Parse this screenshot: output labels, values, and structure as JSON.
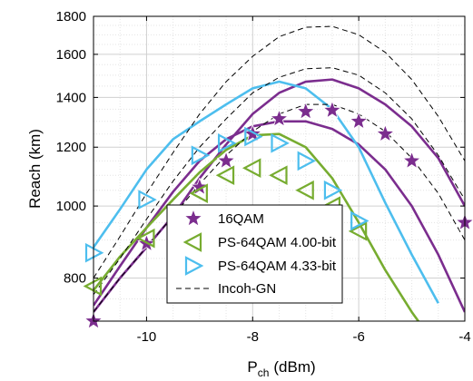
{
  "chart_data": {
    "type": "line",
    "xlabel_main": "P",
    "xlabel_sub": "ch",
    "xlabel_unit": "(dBm)",
    "ylabel": "Reach (km)",
    "xlim": [
      -11,
      -4
    ],
    "ylim": [
      700,
      1800
    ],
    "y_scale": "log",
    "grid": true,
    "legend_position": "lower-left",
    "x_ticks": [
      -10,
      -8,
      -6,
      -4
    ],
    "x_tick_labels": [
      "-10",
      "-8",
      "-6",
      "-4"
    ],
    "y_ticks": [
      800,
      1000,
      1200,
      1400,
      1600,
      1800
    ],
    "y_tick_labels": [
      "800",
      "1000",
      "1200",
      "1400",
      "1600",
      "1800"
    ],
    "colors": {
      "16QAM": "#7b2d8e",
      "PS-64QAM 4.00-bit": "#77ac30",
      "PS-64QAM 4.33-bit": "#4dbeee",
      "Incoh-GN": "#000000"
    },
    "legend": [
      {
        "label": "16QAM",
        "marker": "star",
        "color": "#7b2d8e"
      },
      {
        "label": "PS-64QAM 4.00-bit",
        "marker": "triangle-left",
        "color": "#77ac30"
      },
      {
        "label": "PS-64QAM 4.33-bit",
        "marker": "triangle-right",
        "color": "#4dbeee"
      },
      {
        "label": "Incoh-GN",
        "marker": "dashed-line",
        "color": "#000000"
      }
    ],
    "series": [
      {
        "name": "16QAM",
        "kind": "markers",
        "marker": "star",
        "color": "#7b2d8e",
        "x": [
          -11,
          -10,
          -9,
          -8.5,
          -8,
          -7.5,
          -7,
          -6.5,
          -6,
          -5.5,
          -5,
          -4
        ],
        "y": [
          700,
          890,
          1060,
          1150,
          1250,
          1310,
          1340,
          1345,
          1300,
          1250,
          1150,
          950
        ]
      },
      {
        "name": "PS-64QAM 4.00-bit",
        "kind": "markers",
        "marker": "triangle-left",
        "color": "#77ac30",
        "x": [
          -11,
          -10,
          -9,
          -8.5,
          -8,
          -7.5,
          -7,
          -6.5,
          -6
        ],
        "y": [
          780,
          905,
          1040,
          1100,
          1125,
          1100,
          1050,
          1000,
          925
        ]
      },
      {
        "name": "PS-64QAM 4.33-bit",
        "kind": "markers",
        "marker": "triangle-right",
        "color": "#4dbeee",
        "x": [
          -11,
          -10,
          -9,
          -8.5,
          -8,
          -7.5,
          -7,
          -6.5,
          -6
        ],
        "y": [
          865,
          1020,
          1170,
          1215,
          1240,
          1215,
          1150,
          1050,
          955
        ]
      },
      {
        "name": "16QAM",
        "kind": "line",
        "color": "#7b2d8e",
        "x": [
          -11,
          -10.5,
          -10,
          -9.5,
          -9,
          -8.5,
          -8,
          -7.5,
          -7,
          -6.5,
          -6,
          -5.5,
          -5,
          -4.5,
          -4
        ],
        "y": [
          720,
          800,
          880,
          970,
          1090,
          1210,
          1330,
          1420,
          1470,
          1480,
          1440,
          1370,
          1280,
          1160,
          1000
        ]
      },
      {
        "name": "16QAM",
        "kind": "line",
        "color": "#7b2d8e",
        "x": [
          -11,
          -10.5,
          -10,
          -9.5,
          -9,
          -8.5,
          -8,
          -7.5,
          -7,
          -6.5,
          -6,
          -5.5,
          -5,
          -4.5,
          -4
        ],
        "y": [
          735,
          830,
          935,
          1045,
          1150,
          1230,
          1280,
          1300,
          1300,
          1270,
          1210,
          1120,
          1000,
          860,
          720
        ]
      },
      {
        "name": "PS-64QAM 4.00-bit",
        "kind": "line",
        "color": "#77ac30",
        "x": [
          -11,
          -10.5,
          -10,
          -9.5,
          -9,
          -8.5,
          -8,
          -7.5,
          -7,
          -6.5,
          -6,
          -5.5,
          -5,
          -4.75
        ],
        "y": [
          770,
          855,
          935,
          1020,
          1110,
          1190,
          1245,
          1250,
          1200,
          1090,
          950,
          820,
          720,
          680
        ]
      },
      {
        "name": "PS-64QAM 4.33-bit",
        "kind": "line",
        "color": "#4dbeee",
        "x": [
          -11,
          -10.5,
          -10,
          -9.5,
          -9,
          -8.5,
          -8,
          -7.5,
          -7,
          -6.5,
          -6,
          -5.5,
          -5,
          -4.5
        ],
        "y": [
          880,
          990,
          1120,
          1230,
          1300,
          1370,
          1440,
          1470,
          1440,
          1350,
          1200,
          1010,
          860,
          740
        ]
      },
      {
        "name": "Incoh-GN",
        "kind": "line",
        "dash": true,
        "color": "#000000",
        "x": [
          -11,
          -10.5,
          -10,
          -9.5,
          -9,
          -8.5,
          -8,
          -7.5,
          -7,
          -6.5,
          -6,
          -5.5,
          -5,
          -4.5,
          -4
        ],
        "y": [
          800,
          910,
          1040,
          1180,
          1330,
          1470,
          1590,
          1690,
          1740,
          1745,
          1700,
          1610,
          1480,
          1320,
          1150
        ]
      },
      {
        "name": "Incoh-GN",
        "kind": "line",
        "dash": true,
        "color": "#000000",
        "x": [
          -11,
          -10.5,
          -10,
          -9.5,
          -9,
          -8.5,
          -8,
          -7.5,
          -7,
          -6.5,
          -6,
          -5.5,
          -5,
          -4.5,
          -4
        ],
        "y": [
          760,
          850,
          960,
          1080,
          1200,
          1310,
          1420,
          1490,
          1530,
          1535,
          1500,
          1420,
          1310,
          1170,
          1020
        ]
      },
      {
        "name": "Incoh-GN",
        "kind": "line",
        "dash": true,
        "color": "#000000",
        "x": [
          -11,
          -10.5,
          -10,
          -9.5,
          -9,
          -8.5,
          -8,
          -7.5,
          -7,
          -6.5,
          -6,
          -5.5,
          -5,
          -4.5,
          -4
        ],
        "y": [
          720,
          800,
          880,
          970,
          1070,
          1170,
          1260,
          1330,
          1370,
          1370,
          1330,
          1260,
          1160,
          1040,
          900
        ]
      }
    ]
  }
}
